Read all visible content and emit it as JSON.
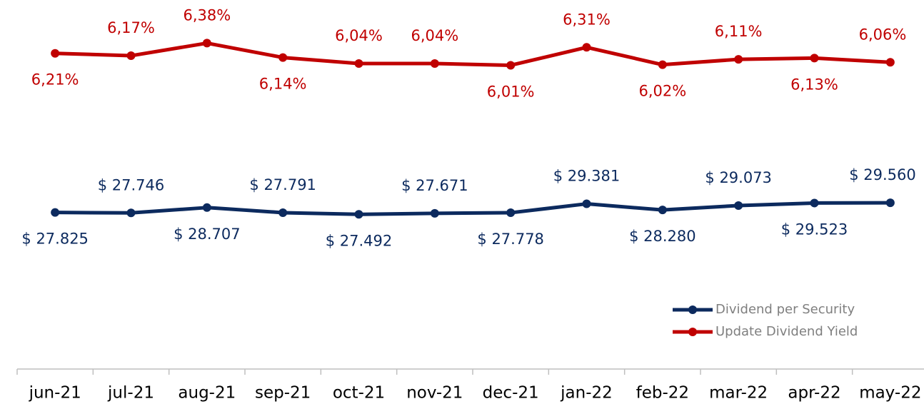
{
  "chart_data": {
    "type": "line",
    "categories": [
      "jun-21",
      "jul-21",
      "aug-21",
      "sep-21",
      "oct-21",
      "nov-21",
      "dec-21",
      "jan-22",
      "feb-22",
      "mar-22",
      "apr-22",
      "may-22"
    ],
    "ylim": [
      -300,
      66000
    ],
    "y2lim": [
      0.94,
      7.1
    ],
    "legend": "lower right",
    "series": [
      {
        "name": "Dividend per Security",
        "color": "#0c2a5e",
        "values": [
          27825,
          27746,
          28707,
          27791,
          27492,
          27671,
          27778,
          29381,
          28280,
          29073,
          29523,
          29560
        ],
        "value_labels": [
          "$ 27.825",
          "$ 27.746",
          "$ 28.707",
          "$ 27.791",
          "$ 27.492",
          "$ 27.671",
          "$ 27.778",
          "$ 29.381",
          "$ 28.280",
          "$ 29.073",
          "$ 29.523",
          "$ 29.560"
        ]
      },
      {
        "name": "Update Dividend Yield",
        "color": "#c00000",
        "axis": "y2",
        "values": [
          6.21,
          6.17,
          6.38,
          6.14,
          6.04,
          6.04,
          6.01,
          6.31,
          6.02,
          6.11,
          6.13,
          6.06
        ],
        "value_labels": [
          "6,21%",
          "6,17%",
          "6,38%",
          "6,14%",
          "6,04%",
          "6,04%",
          "6,01%",
          "6,31%",
          "6,02%",
          "6,11%",
          "6,13%",
          "6,06%"
        ]
      }
    ]
  }
}
